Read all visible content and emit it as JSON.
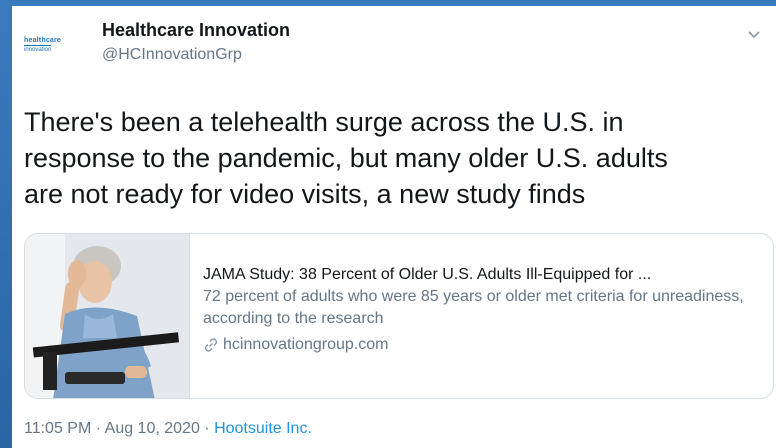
{
  "author": {
    "display_name": "Healthcare Innovation",
    "handle": "@HCInnovationGrp",
    "avatar_line1": "healthcare",
    "avatar_line2": "innovation"
  },
  "icons": {
    "menu": "chevron-down-icon",
    "link": "link-icon"
  },
  "tweet": {
    "text_line1": "There's been a telehealth surge across the U.S. in",
    "text_line2": "response to the pandemic, but many older U.S. adults",
    "text_line3": "are not ready for video visits, a new study finds"
  },
  "card": {
    "title": "JAMA Study: 38 Percent of Older U.S. Adults Ill-Equipped for ...",
    "description": "72 percent of adults who were 85 years or older met criteria for unreadiness, according to the research",
    "domain": "hcinnovationgroup.com"
  },
  "meta": {
    "time": "11:05 PM",
    "separator": " · ",
    "date": "Aug 10, 2020",
    "source": "Hootsuite Inc."
  },
  "colors": {
    "background": "#2c69a8",
    "link_blue": "#1b95e0",
    "muted": "#657786"
  }
}
